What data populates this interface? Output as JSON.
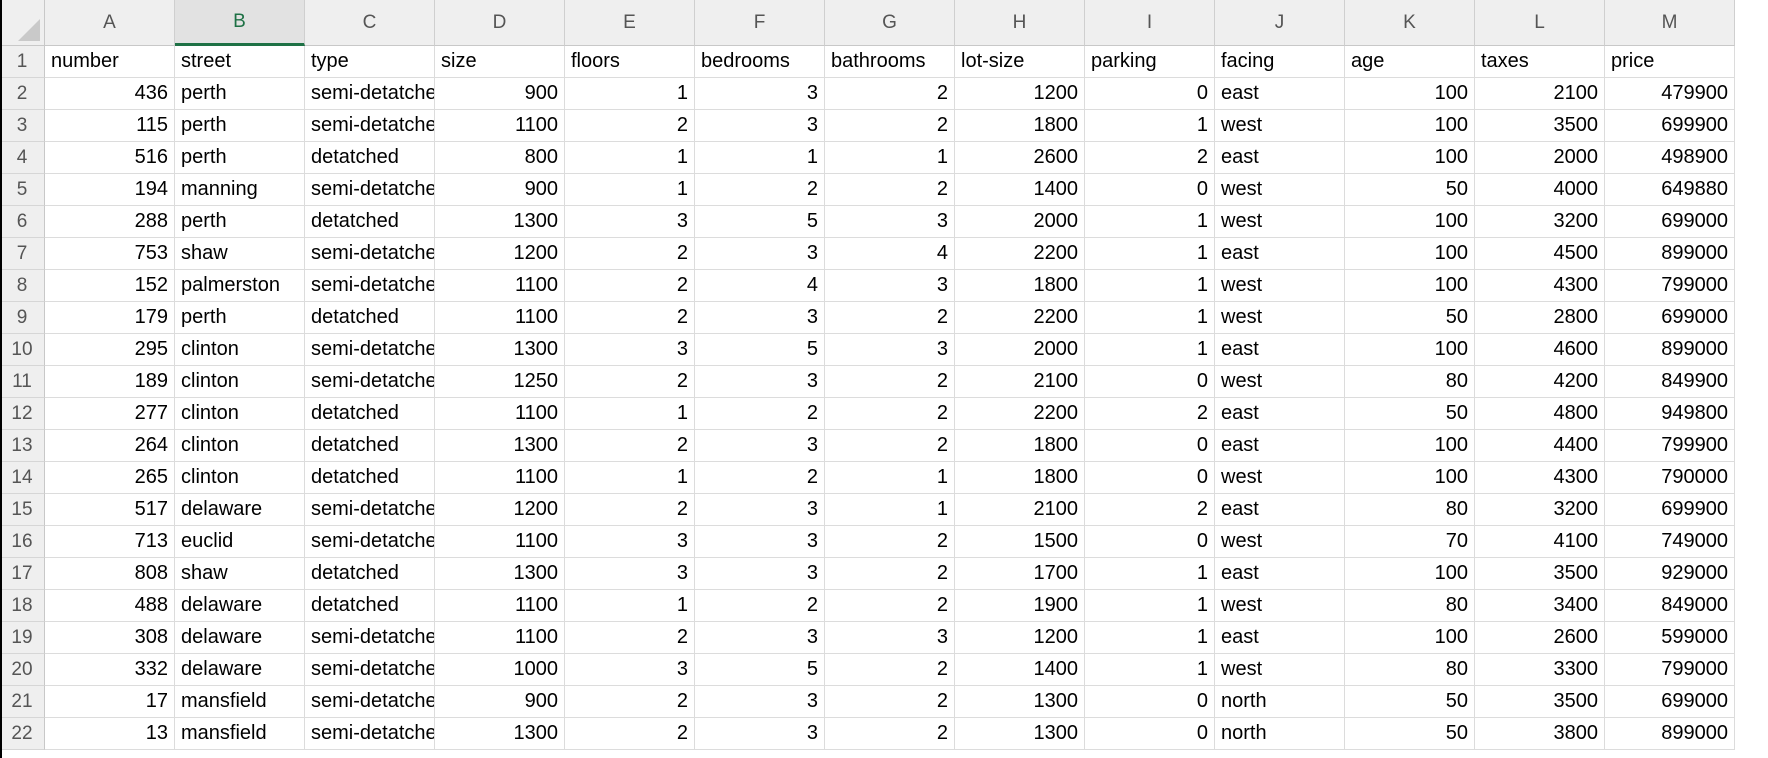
{
  "sheet": {
    "columns": [
      "A",
      "B",
      "C",
      "D",
      "E",
      "F",
      "G",
      "H",
      "I",
      "J",
      "K",
      "L",
      "M"
    ],
    "selected_column": "B",
    "numeric_columns": [
      "A",
      "D",
      "E",
      "F",
      "G",
      "H",
      "I",
      "K",
      "L",
      "M"
    ],
    "rows": [
      {
        "row": "1",
        "cells": [
          "number",
          "street",
          "type",
          "size",
          "floors",
          "bedrooms",
          "bathrooms",
          "lot-size",
          "parking",
          "facing",
          "age",
          "taxes",
          "price"
        ]
      },
      {
        "row": "2",
        "cells": [
          "436",
          "perth",
          "semi-detatched",
          "900",
          "1",
          "3",
          "2",
          "1200",
          "0",
          "east",
          "100",
          "2100",
          "479900"
        ]
      },
      {
        "row": "3",
        "cells": [
          "115",
          "perth",
          "semi-detatched",
          "1100",
          "2",
          "3",
          "2",
          "1800",
          "1",
          "west",
          "100",
          "3500",
          "699900"
        ]
      },
      {
        "row": "4",
        "cells": [
          "516",
          "perth",
          "detatched",
          "800",
          "1",
          "1",
          "1",
          "2600",
          "2",
          "east",
          "100",
          "2000",
          "498900"
        ]
      },
      {
        "row": "5",
        "cells": [
          "194",
          "manning",
          "semi-detatched",
          "900",
          "1",
          "2",
          "2",
          "1400",
          "0",
          "west",
          "50",
          "4000",
          "649880"
        ]
      },
      {
        "row": "6",
        "cells": [
          "288",
          "perth",
          "detatched",
          "1300",
          "3",
          "5",
          "3",
          "2000",
          "1",
          "west",
          "100",
          "3200",
          "699000"
        ]
      },
      {
        "row": "7",
        "cells": [
          "753",
          "shaw",
          "semi-detatched",
          "1200",
          "2",
          "3",
          "4",
          "2200",
          "1",
          "east",
          "100",
          "4500",
          "899000"
        ]
      },
      {
        "row": "8",
        "cells": [
          "152",
          "palmerston",
          "semi-detatched",
          "1100",
          "2",
          "4",
          "3",
          "1800",
          "1",
          "west",
          "100",
          "4300",
          "799000"
        ]
      },
      {
        "row": "9",
        "cells": [
          "179",
          "perth",
          "detatched",
          "1100",
          "2",
          "3",
          "2",
          "2200",
          "1",
          "west",
          "50",
          "2800",
          "699000"
        ]
      },
      {
        "row": "10",
        "cells": [
          "295",
          "clinton",
          "semi-detatched",
          "1300",
          "3",
          "5",
          "3",
          "2000",
          "1",
          "east",
          "100",
          "4600",
          "899000"
        ]
      },
      {
        "row": "11",
        "cells": [
          "189",
          "clinton",
          "semi-detatched",
          "1250",
          "2",
          "3",
          "2",
          "2100",
          "0",
          "west",
          "80",
          "4200",
          "849900"
        ]
      },
      {
        "row": "12",
        "cells": [
          "277",
          "clinton",
          "detatched",
          "1100",
          "1",
          "2",
          "2",
          "2200",
          "2",
          "east",
          "50",
          "4800",
          "949800"
        ]
      },
      {
        "row": "13",
        "cells": [
          "264",
          "clinton",
          "detatched",
          "1300",
          "2",
          "3",
          "2",
          "1800",
          "0",
          "east",
          "100",
          "4400",
          "799900"
        ]
      },
      {
        "row": "14",
        "cells": [
          "265",
          "clinton",
          "detatched",
          "1100",
          "1",
          "2",
          "1",
          "1800",
          "0",
          "west",
          "100",
          "4300",
          "790000"
        ]
      },
      {
        "row": "15",
        "cells": [
          "517",
          "delaware",
          "semi-detatched",
          "1200",
          "2",
          "3",
          "1",
          "2100",
          "2",
          "east",
          "80",
          "3200",
          "699900"
        ]
      },
      {
        "row": "16",
        "cells": [
          "713",
          "euclid",
          "semi-detatched",
          "1100",
          "3",
          "3",
          "2",
          "1500",
          "0",
          "west",
          "70",
          "4100",
          "749000"
        ]
      },
      {
        "row": "17",
        "cells": [
          "808",
          "shaw",
          "detatched",
          "1300",
          "3",
          "3",
          "2",
          "1700",
          "1",
          "east",
          "100",
          "3500",
          "929000"
        ]
      },
      {
        "row": "18",
        "cells": [
          "488",
          "delaware",
          "detatched",
          "1100",
          "1",
          "2",
          "2",
          "1900",
          "1",
          "west",
          "80",
          "3400",
          "849000"
        ]
      },
      {
        "row": "19",
        "cells": [
          "308",
          "delaware",
          "semi-detatched",
          "1100",
          "2",
          "3",
          "3",
          "1200",
          "1",
          "east",
          "100",
          "2600",
          "599000"
        ]
      },
      {
        "row": "20",
        "cells": [
          "332",
          "delaware",
          "semi-detatched",
          "1000",
          "3",
          "5",
          "2",
          "1400",
          "1",
          "west",
          "80",
          "3300",
          "799000"
        ]
      },
      {
        "row": "21",
        "cells": [
          "17",
          "mansfield",
          "semi-detatched",
          "900",
          "2",
          "3",
          "2",
          "1300",
          "0",
          "north",
          "50",
          "3500",
          "699000"
        ]
      },
      {
        "row": "22",
        "cells": [
          "13",
          "mansfield",
          "semi-detatched",
          "1300",
          "2",
          "3",
          "2",
          "1300",
          "0",
          "north",
          "50",
          "3800",
          "899000"
        ]
      }
    ]
  }
}
